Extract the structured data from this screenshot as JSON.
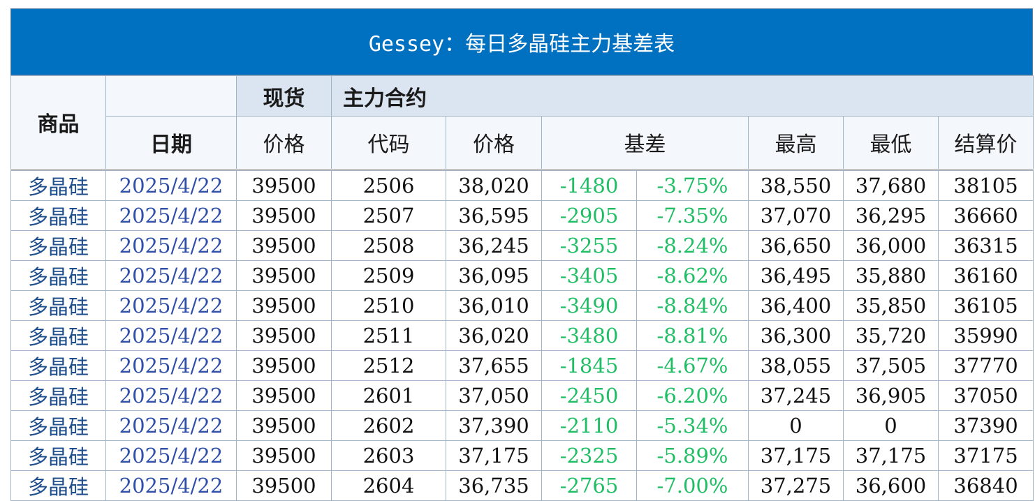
{
  "title": "Gessey：每日多晶硅主力基差表",
  "header": {
    "product": "商品",
    "date": "日期",
    "spot_group": "现货",
    "contract_group": "主力合约",
    "spot_price": "价格",
    "code": "代码",
    "price": "价格",
    "basis": "基差",
    "high": "最高",
    "low": "最低",
    "settle": "结算价"
  },
  "colors": {
    "title_bg": "#0070c0",
    "header_bg": "#f4f8fc",
    "group_header_bg": "#dbe5f1",
    "basis_green": "#1fbe64",
    "name_blue": "#1f4e8c"
  },
  "rows": [
    {
      "product": "多晶硅",
      "date": "2025/4/22",
      "spot": "39500",
      "code": "2506",
      "price": "38,020",
      "basis": "-1480",
      "pct": "-3.75%",
      "high": "38,550",
      "low": "37,680",
      "settle": "38105"
    },
    {
      "product": "多晶硅",
      "date": "2025/4/22",
      "spot": "39500",
      "code": "2507",
      "price": "36,595",
      "basis": "-2905",
      "pct": "-7.35%",
      "high": "37,070",
      "low": "36,295",
      "settle": "36660"
    },
    {
      "product": "多晶硅",
      "date": "2025/4/22",
      "spot": "39500",
      "code": "2508",
      "price": "36,245",
      "basis": "-3255",
      "pct": "-8.24%",
      "high": "36,650",
      "low": "36,000",
      "settle": "36315"
    },
    {
      "product": "多晶硅",
      "date": "2025/4/22",
      "spot": "39500",
      "code": "2509",
      "price": "36,095",
      "basis": "-3405",
      "pct": "-8.62%",
      "high": "36,495",
      "low": "35,880",
      "settle": "36160"
    },
    {
      "product": "多晶硅",
      "date": "2025/4/22",
      "spot": "39500",
      "code": "2510",
      "price": "36,010",
      "basis": "-3490",
      "pct": "-8.84%",
      "high": "36,400",
      "low": "35,850",
      "settle": "36105"
    },
    {
      "product": "多晶硅",
      "date": "2025/4/22",
      "spot": "39500",
      "code": "2511",
      "price": "36,020",
      "basis": "-3480",
      "pct": "-8.81%",
      "high": "36,300",
      "low": "35,720",
      "settle": "35990"
    },
    {
      "product": "多晶硅",
      "date": "2025/4/22",
      "spot": "39500",
      "code": "2512",
      "price": "37,655",
      "basis": "-1845",
      "pct": "-4.67%",
      "high": "38,055",
      "low": "37,505",
      "settle": "37770"
    },
    {
      "product": "多晶硅",
      "date": "2025/4/22",
      "spot": "39500",
      "code": "2601",
      "price": "37,050",
      "basis": "-2450",
      "pct": "-6.20%",
      "high": "37,245",
      "low": "36,905",
      "settle": "37050"
    },
    {
      "product": "多晶硅",
      "date": "2025/4/22",
      "spot": "39500",
      "code": "2602",
      "price": "37,390",
      "basis": "-2110",
      "pct": "-5.34%",
      "high": "0",
      "low": "0",
      "settle": "37390"
    },
    {
      "product": "多晶硅",
      "date": "2025/4/22",
      "spot": "39500",
      "code": "2603",
      "price": "37,175",
      "basis": "-2325",
      "pct": "-5.89%",
      "high": "37,175",
      "low": "37,175",
      "settle": "37175"
    },
    {
      "product": "多晶硅",
      "date": "2025/4/22",
      "spot": "39500",
      "code": "2604",
      "price": "36,735",
      "basis": "-2765",
      "pct": "-7.00%",
      "high": "37,275",
      "low": "36,600",
      "settle": "36840"
    }
  ]
}
